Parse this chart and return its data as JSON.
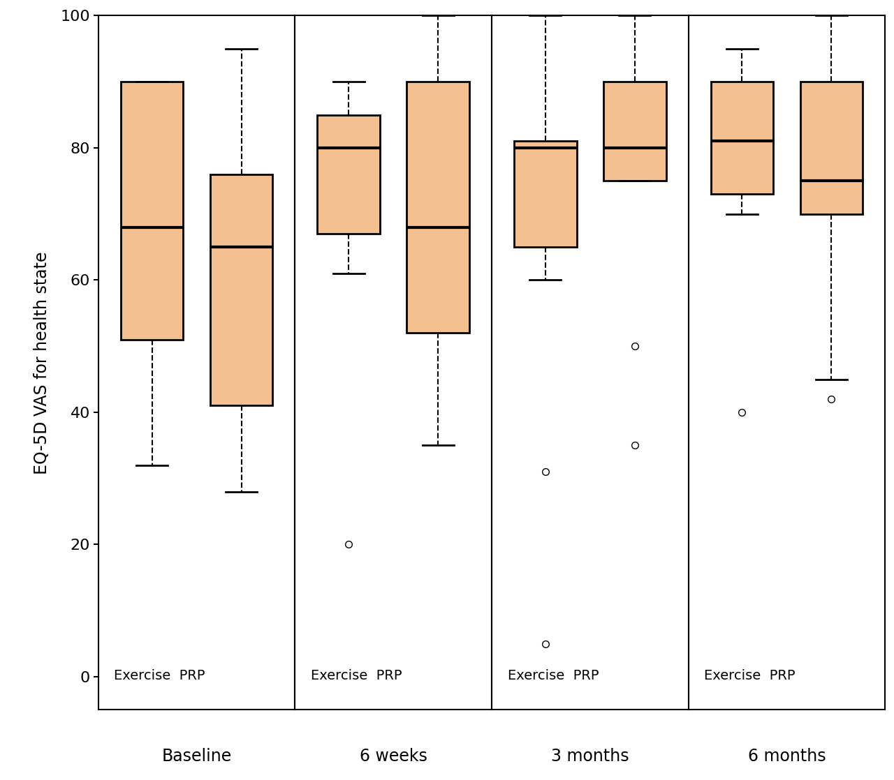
{
  "title": "",
  "ylabel": "EQ-5D VAS for health state",
  "ylim": [
    -5,
    100
  ],
  "yticks": [
    0,
    20,
    40,
    60,
    80,
    100
  ],
  "time_labels": [
    "Baseline",
    "6 weeks",
    "3 months",
    "6 months"
  ],
  "group_labels": [
    "Exercise",
    "PRP"
  ],
  "box_facecolor": "#F5C090",
  "background_color": "#ffffff",
  "groups": {
    "Baseline": {
      "Exercise": {
        "whislo": 32,
        "q1": 51,
        "med": 68,
        "q3": 90,
        "whishi": 90,
        "fliers": []
      },
      "PRP": {
        "whislo": 28,
        "q1": 41,
        "med": 65,
        "q3": 76,
        "whishi": 95,
        "fliers": []
      }
    },
    "6 weeks": {
      "Exercise": {
        "whislo": 61,
        "q1": 67,
        "med": 80,
        "q3": 85,
        "whishi": 90,
        "fliers": [
          20
        ]
      },
      "PRP": {
        "whislo": 35,
        "q1": 52,
        "med": 68,
        "q3": 90,
        "whishi": 100,
        "fliers": []
      }
    },
    "3 months": {
      "Exercise": {
        "whislo": 60,
        "q1": 65,
        "med": 80,
        "q3": 81,
        "whishi": 100,
        "fliers": [
          5,
          31
        ]
      },
      "PRP": {
        "whislo": 75,
        "q1": 75,
        "med": 80,
        "q3": 90,
        "whishi": 100,
        "fliers": [
          35,
          50
        ]
      }
    },
    "6 months": {
      "Exercise": {
        "whislo": 70,
        "q1": 73,
        "med": 81,
        "q3": 90,
        "whishi": 95,
        "fliers": [
          40
        ]
      },
      "PRP": {
        "whislo": 45,
        "q1": 70,
        "med": 75,
        "q3": 90,
        "whishi": 100,
        "fliers": [
          42
        ]
      }
    }
  }
}
